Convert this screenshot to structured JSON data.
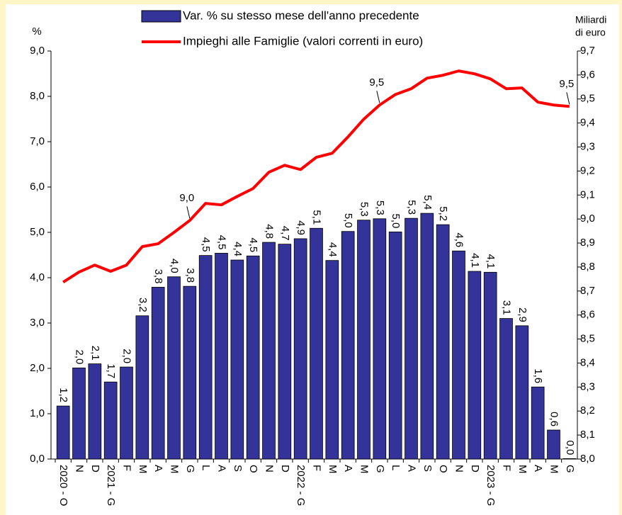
{
  "chart_data": {
    "type": "bar_line",
    "y_label": "%",
    "y2_label": [
      "Miliardi",
      "di euro"
    ],
    "categories": [
      "2020 - O",
      "N",
      "D",
      "2021 - G",
      "F",
      "M",
      "A",
      "M",
      "G",
      "L",
      "A",
      "S",
      "O",
      "N",
      "D",
      "2022 - G",
      "F",
      "M",
      "A",
      "M",
      "G",
      "L",
      "A",
      "S",
      "O",
      "N",
      "D",
      "2023 - G",
      "F",
      "M",
      "A",
      "M",
      "G"
    ],
    "series": [
      {
        "name": "Var. % su stesso mese dell'anno precedente",
        "type": "bar",
        "color": "#333399",
        "values": [
          1.17,
          2.01,
          2.1,
          1.7,
          2.03,
          3.16,
          3.79,
          4.02,
          3.81,
          4.49,
          4.54,
          4.39,
          4.48,
          4.78,
          4.74,
          4.86,
          5.09,
          4.38,
          5.02,
          5.27,
          5.3,
          5.01,
          5.31,
          5.42,
          5.17,
          4.59,
          4.14,
          4.12,
          3.1,
          2.94,
          1.59,
          0.64,
          0.01
        ],
        "value_labels": [
          "1,2",
          "2,0",
          "2,1",
          "1,7",
          "2,0",
          "3,2",
          "3,8",
          "4,0",
          "3,8",
          "4,5",
          "4,5",
          "4,4",
          "4,5",
          "4,8",
          "4,7",
          "4,9",
          "5,1",
          "4,4",
          "5,0",
          "5,3",
          "5,3",
          "5,0",
          "5,3",
          "5,4",
          "5,2",
          "4,6",
          "4,1",
          "4,1",
          "3,1",
          "2,9",
          "1,6",
          "0,6",
          "0,0"
        ]
      },
      {
        "name": "Impieghi alle Famiglie (valori correnti in euro)",
        "type": "line",
        "axis": "y2",
        "color": "#ff0000",
        "values": [
          8.737,
          8.779,
          8.808,
          8.782,
          8.808,
          8.885,
          8.897,
          8.944,
          8.994,
          9.065,
          9.059,
          9.094,
          9.127,
          9.195,
          9.224,
          9.206,
          9.257,
          9.274,
          9.342,
          9.416,
          9.475,
          9.519,
          9.543,
          9.587,
          9.599,
          9.617,
          9.605,
          9.584,
          9.543,
          9.546,
          9.487,
          9.475,
          9.469
        ],
        "value_labels": [
          null,
          null,
          null,
          null,
          null,
          null,
          null,
          null,
          "9,0",
          null,
          null,
          null,
          null,
          null,
          null,
          null,
          null,
          null,
          null,
          null,
          "9,5",
          null,
          null,
          null,
          null,
          null,
          null,
          null,
          null,
          null,
          null,
          null,
          "9,5"
        ]
      }
    ],
    "ylim": [
      0,
      9
    ],
    "yticks": [
      {
        "value": 0,
        "label": "0,0"
      },
      {
        "value": 1,
        "label": "1,0"
      },
      {
        "value": 2,
        "label": "2,0"
      },
      {
        "value": 3,
        "label": "3,0"
      },
      {
        "value": 4,
        "label": "4,0"
      },
      {
        "value": 5,
        "label": "5,0"
      },
      {
        "value": 6,
        "label": "6,0"
      },
      {
        "value": 7,
        "label": "7,0"
      },
      {
        "value": 8,
        "label": "8,0"
      },
      {
        "value": 9,
        "label": "9,0"
      }
    ],
    "y2lim": [
      8.0,
      9.7
    ],
    "y2ticks": [
      {
        "value": 8.0,
        "label": "8,0"
      },
      {
        "value": 8.1,
        "label": "8,1"
      },
      {
        "value": 8.2,
        "label": "8,2"
      },
      {
        "value": 8.3,
        "label": "8,3"
      },
      {
        "value": 8.4,
        "label": "8,4"
      },
      {
        "value": 8.5,
        "label": "8,5"
      },
      {
        "value": 8.6,
        "label": "8,6"
      },
      {
        "value": 8.7,
        "label": "8,7"
      },
      {
        "value": 8.8,
        "label": "8,8"
      },
      {
        "value": 8.9,
        "label": "8,9"
      },
      {
        "value": 9.0,
        "label": "9,0"
      },
      {
        "value": 9.1,
        "label": "9,1"
      },
      {
        "value": 9.2,
        "label": "9,2"
      },
      {
        "value": 9.3,
        "label": "9,3"
      },
      {
        "value": 9.4,
        "label": "9,4"
      },
      {
        "value": 9.5,
        "label": "9,5"
      },
      {
        "value": 9.6,
        "label": "9,6"
      },
      {
        "value": 9.7,
        "label": "9,7"
      }
    ]
  }
}
